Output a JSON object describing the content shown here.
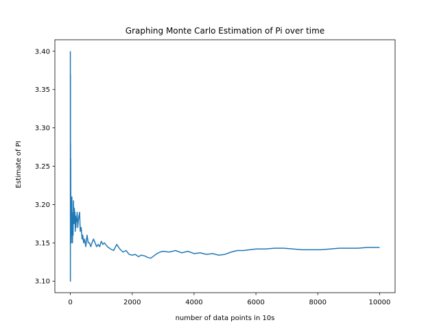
{
  "chart_data": {
    "type": "line",
    "title": "Graphing Monte Carlo Estimation of Pi over time",
    "xlabel": "number of data points in 10s",
    "ylabel": "Estimate of PI",
    "xlim": [
      -500,
      10500
    ],
    "ylim": [
      3.085,
      3.415
    ],
    "xticks": [
      0,
      2000,
      4000,
      6000,
      8000,
      10000
    ],
    "yticks": [
      3.1,
      3.15,
      3.2,
      3.25,
      3.3,
      3.35,
      3.4
    ],
    "ytick_labels": [
      "3.10",
      "3.15",
      "3.20",
      "3.25",
      "3.30",
      "3.35",
      "3.40"
    ],
    "grid": false,
    "series": [
      {
        "color": "#1f77b4",
        "x": [
          0,
          2,
          4,
          6,
          8,
          10,
          12,
          15,
          20,
          25,
          30,
          35,
          40,
          45,
          50,
          55,
          60,
          70,
          80,
          90,
          100,
          110,
          120,
          130,
          140,
          150,
          160,
          170,
          180,
          190,
          200,
          220,
          240,
          260,
          280,
          300,
          320,
          350,
          380,
          400,
          430,
          460,
          500,
          540,
          580,
          620,
          660,
          700,
          750,
          800,
          850,
          900,
          950,
          1000,
          1050,
          1100,
          1200,
          1300,
          1400,
          1500,
          1600,
          1700,
          1800,
          1900,
          2000,
          2100,
          2200,
          2300,
          2400,
          2500,
          2600,
          2700,
          2800,
          2900,
          3000,
          3200,
          3400,
          3600,
          3800,
          4000,
          4200,
          4400,
          4600,
          4800,
          5000,
          5200,
          5400,
          5600,
          5800,
          6000,
          6300,
          6600,
          6900,
          7200,
          7500,
          7800,
          8100,
          8400,
          8700,
          9000,
          9300,
          9600,
          10000
        ],
        "y": [
          3.4,
          3.1,
          3.37,
          3.2,
          3.28,
          3.15,
          3.26,
          3.22,
          3.16,
          3.19,
          3.15,
          3.2,
          3.17,
          3.19,
          3.21,
          3.16,
          3.19,
          3.15,
          3.18,
          3.16,
          3.205,
          3.19,
          3.175,
          3.195,
          3.18,
          3.19,
          3.165,
          3.185,
          3.17,
          3.18,
          3.178,
          3.19,
          3.17,
          3.18,
          3.185,
          3.19,
          3.165,
          3.17,
          3.155,
          3.16,
          3.15,
          3.155,
          3.145,
          3.16,
          3.15,
          3.15,
          3.145,
          3.15,
          3.155,
          3.15,
          3.145,
          3.148,
          3.145,
          3.152,
          3.148,
          3.15,
          3.145,
          3.142,
          3.14,
          3.148,
          3.142,
          3.138,
          3.14,
          3.135,
          3.134,
          3.135,
          3.132,
          3.134,
          3.133,
          3.131,
          3.13,
          3.133,
          3.136,
          3.138,
          3.139,
          3.138,
          3.14,
          3.137,
          3.139,
          3.136,
          3.137,
          3.135,
          3.136,
          3.134,
          3.135,
          3.138,
          3.14,
          3.14,
          3.141,
          3.142,
          3.142,
          3.143,
          3.143,
          3.142,
          3.141,
          3.141,
          3.141,
          3.142,
          3.143,
          3.143,
          3.143,
          3.144,
          3.144
        ]
      }
    ]
  }
}
